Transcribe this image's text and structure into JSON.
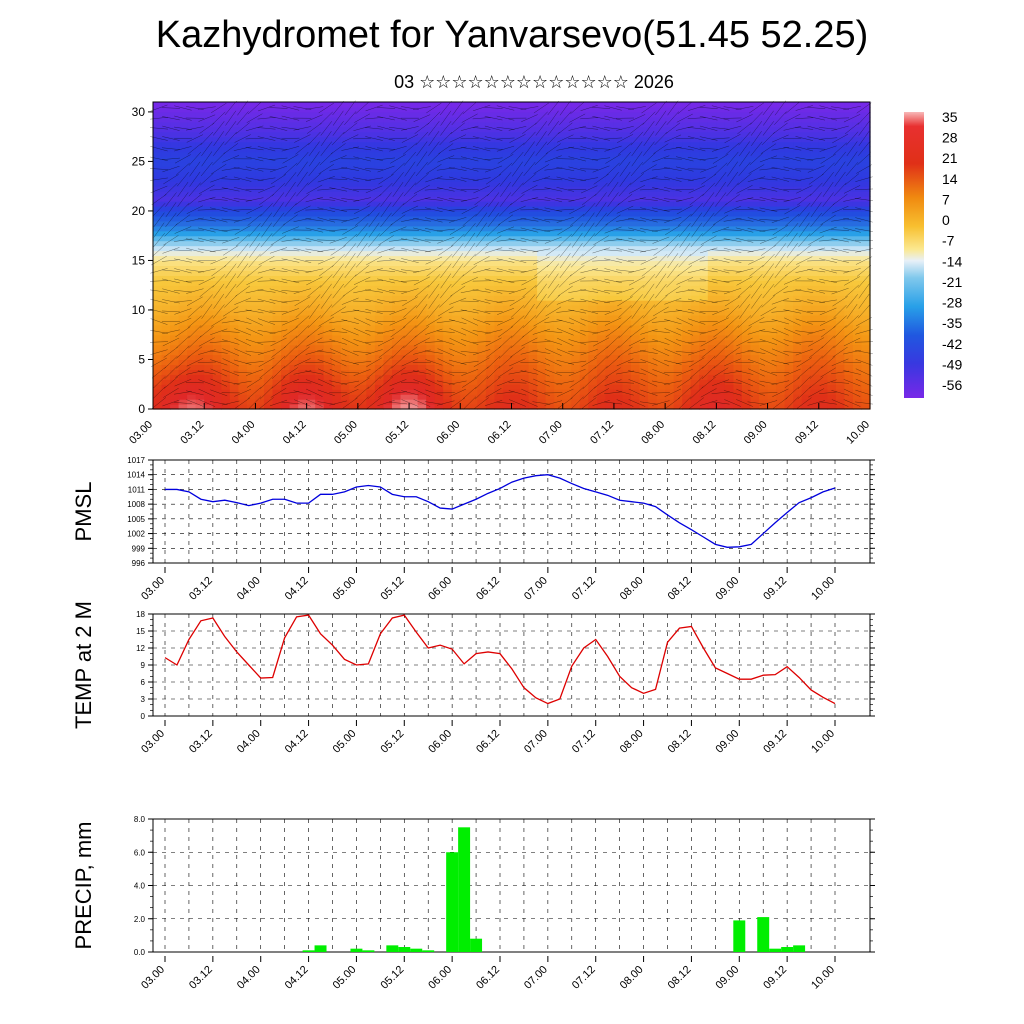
{
  "title": "Kazhydromet for Yanvarsevo(51.45 52.25)",
  "subtitle": "03 ☆☆☆☆☆☆☆☆☆☆☆☆☆ 2026",
  "time_labels": [
    "03.00",
    "03.12",
    "04.00",
    "04.12",
    "05.00",
    "05.12",
    "06.00",
    "06.12",
    "07.00",
    "07.12",
    "08.00",
    "08.12",
    "09.00",
    "09.12",
    "10.00"
  ],
  "chart_data": [
    {
      "type": "heatmap",
      "name": "cross-section",
      "title": "",
      "xlabel": "",
      "ylabel": "",
      "x_ticks": [
        "03.00",
        "03.12",
        "04.00",
        "04.12",
        "05.00",
        "05.12",
        "06.00",
        "06.12",
        "07.00",
        "07.12",
        "08.00",
        "08.12",
        "09.00",
        "09.12",
        "10.00"
      ],
      "y_ticks": [
        0,
        5,
        10,
        15,
        20,
        25,
        30
      ],
      "ylim": [
        0,
        31
      ],
      "colorbar_labels": [
        "35",
        "28",
        "21",
        "14",
        "7",
        "0",
        "-7",
        "-14",
        "-21",
        "-28",
        "-35",
        "-42",
        "-49",
        "-56"
      ],
      "temperature_profile": [
        {
          "level": 0,
          "value": 20
        },
        {
          "level": 5,
          "value": 12
        },
        {
          "level": 10,
          "value": 4
        },
        {
          "level": 13,
          "value": 0
        },
        {
          "level": 15,
          "value": -6
        },
        {
          "level": 18,
          "value": -30
        },
        {
          "level": 21,
          "value": -52
        },
        {
          "level": 25,
          "value": -46
        },
        {
          "level": 28,
          "value": -52
        },
        {
          "level": 31,
          "value": -56
        }
      ],
      "warm_spots": [
        {
          "x": "03.06",
          "value": 30
        },
        {
          "x": "04.12",
          "value": 28
        },
        {
          "x": "05.12",
          "value": 30
        },
        {
          "x": "08.12",
          "value": 24
        }
      ]
    },
    {
      "type": "line",
      "name": "pmsl",
      "ylabel": "PMSL",
      "color": "#0000dd",
      "ylim": [
        996,
        1017
      ],
      "y_ticks": [
        996,
        999,
        1002,
        1005,
        1008,
        1011,
        1014,
        1017
      ],
      "x": [
        0,
        3,
        6,
        9,
        12,
        15,
        18,
        21,
        24,
        27,
        30,
        33,
        36,
        39,
        42,
        45,
        48,
        51,
        54,
        57,
        60,
        63,
        66,
        69,
        72,
        75,
        78,
        81,
        84,
        87,
        90,
        93,
        96,
        99,
        102,
        105,
        108,
        111,
        114,
        117,
        120,
        123,
        126,
        129,
        132,
        135,
        138,
        141,
        144,
        147,
        150,
        153,
        156,
        159,
        162,
        165,
        168
      ],
      "values": [
        1011,
        1011,
        1010.5,
        1009,
        1008.5,
        1008.8,
        1008.3,
        1007.7,
        1008.2,
        1009,
        1009,
        1008.2,
        1008.2,
        1010,
        1010,
        1010.5,
        1011.5,
        1011.8,
        1011.5,
        1010,
        1009.5,
        1009.5,
        1008.5,
        1007.2,
        1007,
        1008,
        1009,
        1010.2,
        1011.2,
        1012.5,
        1013.3,
        1013.8,
        1014,
        1013.3,
        1012.2,
        1011.2,
        1010.5,
        1009.8,
        1008.8,
        1008.5,
        1008.2,
        1007.5,
        1005.8,
        1004.2,
        1002.8,
        1001.3,
        999.8,
        999.2,
        999.3,
        999.8,
        1002,
        1004.2,
        1006.3,
        1008.3,
        1009.3,
        1010.5,
        1011.3
      ]
    },
    {
      "type": "line",
      "name": "temp2m",
      "ylabel": "TEMP at 2 M",
      "color": "#dd0000",
      "ylim": [
        0,
        18
      ],
      "y_ticks": [
        0,
        3,
        6,
        9,
        12,
        15,
        18
      ],
      "x": [
        0,
        3,
        6,
        9,
        12,
        15,
        18,
        21,
        24,
        27,
        30,
        33,
        36,
        39,
        42,
        45,
        48,
        51,
        54,
        57,
        60,
        63,
        66,
        69,
        72,
        75,
        78,
        81,
        84,
        87,
        90,
        93,
        96,
        99,
        102,
        105,
        108,
        111,
        114,
        117,
        120,
        123,
        126,
        129,
        132,
        135,
        138,
        141,
        144,
        147,
        150,
        153,
        156,
        159,
        162,
        165,
        168
      ],
      "values": [
        10.3,
        9,
        13.5,
        16.8,
        17.3,
        14,
        11.3,
        9,
        6.7,
        6.8,
        13.8,
        17.5,
        17.8,
        14.5,
        12.5,
        10,
        9,
        9.2,
        14.5,
        17.3,
        17.8,
        14.8,
        12,
        12.5,
        11.8,
        9.2,
        11,
        11.3,
        11,
        8.3,
        5,
        3.2,
        2.2,
        3,
        8.8,
        12,
        13.5,
        10.5,
        7,
        5,
        4,
        4.7,
        13,
        15.5,
        15.8,
        12,
        8.5,
        7.5,
        6.5,
        6.5,
        7.2,
        7.3,
        8.7,
        6.8,
        4.6,
        3.3,
        2.2
      ]
    },
    {
      "type": "bar",
      "name": "precip",
      "ylabel": "PRECIP, mm",
      "color": "#00ee00",
      "ylim": [
        0,
        8
      ],
      "y_ticks": [
        "0.0",
        "2.0",
        "4.0",
        "6.0",
        "8.0"
      ],
      "x": [
        36,
        39,
        48,
        51,
        57,
        60,
        63,
        66,
        72,
        75,
        78,
        144,
        150,
        153,
        156,
        159
      ],
      "values": [
        0.1,
        0.4,
        0.2,
        0.1,
        0.4,
        0.3,
        0.2,
        0.1,
        6.0,
        7.5,
        0.8,
        1.9,
        2.1,
        0.2,
        0.3,
        0.4
      ]
    }
  ]
}
